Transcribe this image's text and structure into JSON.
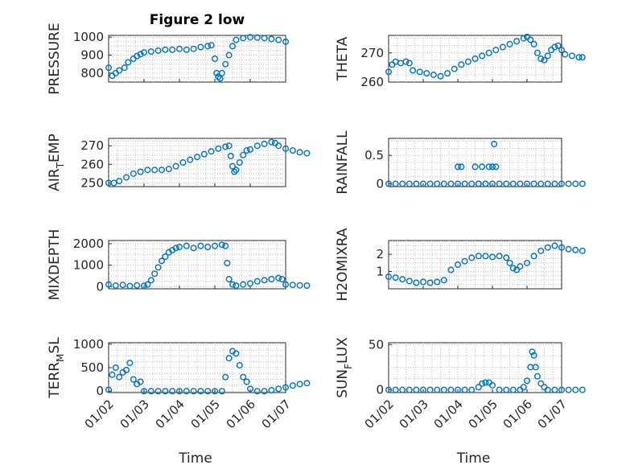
{
  "chart_data": [
    {
      "type": "scatter",
      "title": "Figure 2 low",
      "ylabel": "PRESSURE",
      "ylim": [
        750,
        1010
      ],
      "yticks": [
        800,
        900,
        1000
      ],
      "ytick_labels": [
        "800",
        "900",
        "1000"
      ],
      "xticks": [
        "01/02",
        "01/03",
        "01/04",
        "01/05",
        "01/06",
        "01/07"
      ],
      "xlabel": "",
      "series_color": "#0072BD",
      "grid": true,
      "points": [
        [
          0.0,
          830
        ],
        [
          0.1,
          785
        ],
        [
          0.2,
          800
        ],
        [
          0.3,
          815
        ],
        [
          0.45,
          830
        ],
        [
          0.55,
          860
        ],
        [
          0.7,
          880
        ],
        [
          0.8,
          895
        ],
        [
          0.9,
          905
        ],
        [
          1.0,
          915
        ],
        [
          1.2,
          920
        ],
        [
          1.4,
          925
        ],
        [
          1.6,
          930
        ],
        [
          1.8,
          930
        ],
        [
          2.0,
          935
        ],
        [
          2.2,
          930
        ],
        [
          2.4,
          935
        ],
        [
          2.6,
          945
        ],
        [
          2.8,
          950
        ],
        [
          2.9,
          955
        ],
        [
          3.0,
          880
        ],
        [
          3.05,
          800
        ],
        [
          3.1,
          780
        ],
        [
          3.15,
          770
        ],
        [
          3.2,
          800
        ],
        [
          3.3,
          850
        ],
        [
          3.4,
          900
        ],
        [
          3.5,
          950
        ],
        [
          3.6,
          985
        ],
        [
          3.8,
          995
        ],
        [
          4.0,
          1000
        ],
        [
          4.2,
          998
        ],
        [
          4.4,
          995
        ],
        [
          4.6,
          990
        ],
        [
          4.8,
          985
        ],
        [
          5.0,
          975
        ]
      ]
    },
    {
      "type": "scatter",
      "title": "",
      "ylabel": "THETA",
      "ylim": [
        260,
        276
      ],
      "yticks": [
        260,
        270
      ],
      "ytick_labels": [
        "260",
        "270"
      ],
      "xticks": [
        "01/02",
        "01/03",
        "01/04",
        "01/05",
        "01/06",
        "01/07"
      ],
      "xlabel": "",
      "series_color": "#0072BD",
      "grid": true,
      "points": [
        [
          0.0,
          263.5
        ],
        [
          0.1,
          266
        ],
        [
          0.2,
          267
        ],
        [
          0.35,
          266.5
        ],
        [
          0.5,
          267
        ],
        [
          0.6,
          266.5
        ],
        [
          0.7,
          264
        ],
        [
          0.9,
          263.5
        ],
        [
          1.1,
          263
        ],
        [
          1.3,
          262.5
        ],
        [
          1.5,
          262
        ],
        [
          1.7,
          263
        ],
        [
          1.9,
          264.5
        ],
        [
          2.1,
          266
        ],
        [
          2.3,
          267
        ],
        [
          2.5,
          268
        ],
        [
          2.7,
          269
        ],
        [
          2.9,
          270
        ],
        [
          3.1,
          271
        ],
        [
          3.3,
          272
        ],
        [
          3.5,
          273
        ],
        [
          3.7,
          274
        ],
        [
          3.9,
          275
        ],
        [
          4.0,
          275.5
        ],
        [
          4.1,
          274.5
        ],
        [
          4.2,
          273
        ],
        [
          4.3,
          270
        ],
        [
          4.4,
          268
        ],
        [
          4.5,
          267.5
        ],
        [
          4.6,
          269
        ],
        [
          4.7,
          271
        ],
        [
          4.8,
          272
        ],
        [
          4.9,
          272.5
        ],
        [
          5.0,
          271
        ],
        [
          5.1,
          269.5
        ],
        [
          5.3,
          269
        ],
        [
          5.5,
          268.5
        ],
        [
          5.6,
          268.5
        ]
      ]
    },
    {
      "type": "scatter",
      "title": "",
      "ylabel": "AIR_TEMP",
      "ylim": [
        248,
        274
      ],
      "yticks": [
        250,
        260,
        270
      ],
      "ytick_labels": [
        "250",
        "260",
        "270"
      ],
      "xticks": [
        "01/02",
        "01/03",
        "01/04",
        "01/05",
        "01/06",
        "01/07"
      ],
      "xlabel": "",
      "series_color": "#0072BD",
      "grid": true,
      "points": [
        [
          0.0,
          250
        ],
        [
          0.15,
          250
        ],
        [
          0.3,
          251
        ],
        [
          0.5,
          253
        ],
        [
          0.7,
          255
        ],
        [
          0.9,
          256
        ],
        [
          1.1,
          257
        ],
        [
          1.3,
          257
        ],
        [
          1.5,
          257
        ],
        [
          1.7,
          257.5
        ],
        [
          1.9,
          259
        ],
        [
          2.1,
          261
        ],
        [
          2.3,
          262.5
        ],
        [
          2.5,
          264
        ],
        [
          2.7,
          265.5
        ],
        [
          2.9,
          267
        ],
        [
          3.1,
          268.5
        ],
        [
          3.3,
          269.5
        ],
        [
          3.4,
          270
        ],
        [
          3.45,
          264.5
        ],
        [
          3.5,
          259
        ],
        [
          3.55,
          256
        ],
        [
          3.6,
          257
        ],
        [
          3.7,
          261
        ],
        [
          3.8,
          265
        ],
        [
          3.9,
          267.5
        ],
        [
          4.0,
          268
        ],
        [
          4.2,
          270
        ],
        [
          4.4,
          271
        ],
        [
          4.6,
          272
        ],
        [
          4.7,
          271.5
        ],
        [
          4.8,
          270
        ],
        [
          5.0,
          268.5
        ],
        [
          5.2,
          267.5
        ],
        [
          5.4,
          266.5
        ],
        [
          5.6,
          266
        ]
      ]
    },
    {
      "type": "scatter",
      "title": "",
      "ylabel": "RAINFALL",
      "ylim": [
        -0.05,
        0.8
      ],
      "yticks": [
        0,
        0.5
      ],
      "ytick_labels": [
        "0",
        "0.5"
      ],
      "xticks": [
        "01/02",
        "01/03",
        "01/04",
        "01/05",
        "01/06",
        "01/07"
      ],
      "xlabel": "",
      "series_color": "#0072BD",
      "grid": true,
      "points": [
        [
          0.0,
          0
        ],
        [
          0.2,
          0
        ],
        [
          0.4,
          0
        ],
        [
          0.6,
          0
        ],
        [
          0.8,
          0
        ],
        [
          1.0,
          0
        ],
        [
          1.2,
          0
        ],
        [
          1.4,
          0
        ],
        [
          1.6,
          0
        ],
        [
          1.8,
          0
        ],
        [
          2.0,
          0
        ],
        [
          2.2,
          0
        ],
        [
          2.4,
          0
        ],
        [
          2.6,
          0
        ],
        [
          2.8,
          0
        ],
        [
          3.0,
          0
        ],
        [
          3.2,
          0
        ],
        [
          3.4,
          0
        ],
        [
          3.6,
          0
        ],
        [
          3.8,
          0
        ],
        [
          4.0,
          0
        ],
        [
          4.2,
          0
        ],
        [
          4.4,
          0
        ],
        [
          4.6,
          0
        ],
        [
          4.8,
          0
        ],
        [
          5.0,
          0
        ],
        [
          5.2,
          0
        ],
        [
          5.4,
          0
        ],
        [
          5.6,
          0
        ],
        [
          2.0,
          0.3
        ],
        [
          2.1,
          0.3
        ],
        [
          2.5,
          0.3
        ],
        [
          2.7,
          0.3
        ],
        [
          2.9,
          0.3
        ],
        [
          3.0,
          0.3
        ],
        [
          3.1,
          0.3
        ],
        [
          3.05,
          0.7
        ],
        [
          2.6,
          0.0
        ],
        [
          2.8,
          0.0
        ]
      ]
    },
    {
      "type": "scatter",
      "title": "",
      "ylabel": "MIXDEPTH",
      "ylim": [
        -100,
        2150
      ],
      "yticks": [
        0,
        1000,
        2000
      ],
      "ytick_labels": [
        "0",
        "1000",
        "2000"
      ],
      "xticks": [
        "01/02",
        "01/03",
        "01/04",
        "01/05",
        "01/06",
        "01/07"
      ],
      "xlabel": "",
      "series_color": "#0072BD",
      "grid": true,
      "points": [
        [
          0.0,
          100
        ],
        [
          0.2,
          50
        ],
        [
          0.4,
          80
        ],
        [
          0.6,
          30
        ],
        [
          0.8,
          60
        ],
        [
          1.0,
          40
        ],
        [
          1.1,
          100
        ],
        [
          1.2,
          300
        ],
        [
          1.3,
          600
        ],
        [
          1.4,
          900
        ],
        [
          1.5,
          1200
        ],
        [
          1.6,
          1400
        ],
        [
          1.7,
          1600
        ],
        [
          1.8,
          1700
        ],
        [
          1.9,
          1800
        ],
        [
          2.0,
          1850
        ],
        [
          2.2,
          1900
        ],
        [
          2.4,
          1800
        ],
        [
          2.6,
          1900
        ],
        [
          2.8,
          1850
        ],
        [
          3.0,
          1900
        ],
        [
          3.2,
          1950
        ],
        [
          3.3,
          1900
        ],
        [
          3.35,
          1100
        ],
        [
          3.4,
          350
        ],
        [
          3.5,
          100
        ],
        [
          3.6,
          50
        ],
        [
          3.8,
          100
        ],
        [
          4.0,
          150
        ],
        [
          4.2,
          250
        ],
        [
          4.4,
          300
        ],
        [
          4.6,
          350
        ],
        [
          4.8,
          400
        ],
        [
          4.9,
          350
        ],
        [
          5.0,
          100
        ],
        [
          5.2,
          80
        ],
        [
          5.4,
          60
        ],
        [
          5.6,
          50
        ]
      ]
    },
    {
      "type": "scatter",
      "title": "",
      "ylabel": "H2OMIXRA",
      "ylim": [
        0,
        2.8
      ],
      "yticks": [
        1,
        2
      ],
      "ytick_labels": [
        "1",
        "2"
      ],
      "xticks": [
        "01/02",
        "01/03",
        "01/04",
        "01/05",
        "01/06",
        "01/07"
      ],
      "xlabel": "",
      "series_color": "#0072BD",
      "grid": true,
      "points": [
        [
          0.0,
          0.7
        ],
        [
          0.2,
          0.65
        ],
        [
          0.4,
          0.55
        ],
        [
          0.6,
          0.45
        ],
        [
          0.8,
          0.35
        ],
        [
          1.0,
          0.4
        ],
        [
          1.2,
          0.35
        ],
        [
          1.4,
          0.4
        ],
        [
          1.6,
          0.5
        ],
        [
          1.8,
          1.1
        ],
        [
          2.0,
          1.4
        ],
        [
          2.2,
          1.6
        ],
        [
          2.4,
          1.8
        ],
        [
          2.6,
          1.9
        ],
        [
          2.8,
          1.9
        ],
        [
          3.0,
          1.85
        ],
        [
          3.2,
          1.9
        ],
        [
          3.4,
          1.8
        ],
        [
          3.5,
          1.5
        ],
        [
          3.6,
          1.2
        ],
        [
          3.7,
          1.1
        ],
        [
          3.8,
          1.3
        ],
        [
          4.0,
          1.5
        ],
        [
          4.2,
          1.9
        ],
        [
          4.4,
          2.2
        ],
        [
          4.6,
          2.4
        ],
        [
          4.8,
          2.5
        ],
        [
          5.0,
          2.4
        ],
        [
          5.2,
          2.3
        ],
        [
          5.4,
          2.25
        ],
        [
          5.6,
          2.2
        ]
      ]
    },
    {
      "type": "scatter",
      "title": "",
      "ylabel": "TERR_MSL",
      "ylim": [
        -30,
        1030
      ],
      "yticks": [
        0,
        500,
        1000
      ],
      "ytick_labels": [
        "0",
        "500",
        "1000"
      ],
      "xticks": [
        "01/02",
        "01/03",
        "01/04",
        "01/05",
        "01/06",
        "01/07"
      ],
      "xlabel": "01/02 01/03 01/04 01/05 01/06 01/07",
      "series_color": "#0072BD",
      "grid": true,
      "points": [
        [
          0.0,
          30
        ],
        [
          0.1,
          350
        ],
        [
          0.2,
          500
        ],
        [
          0.3,
          300
        ],
        [
          0.4,
          400
        ],
        [
          0.5,
          450
        ],
        [
          0.6,
          600
        ],
        [
          0.7,
          250
        ],
        [
          0.8,
          150
        ],
        [
          0.9,
          200
        ],
        [
          1.0,
          0
        ],
        [
          1.2,
          0
        ],
        [
          1.4,
          0
        ],
        [
          1.6,
          0
        ],
        [
          1.8,
          0
        ],
        [
          2.0,
          0
        ],
        [
          2.2,
          0
        ],
        [
          2.4,
          0
        ],
        [
          2.6,
          0
        ],
        [
          2.8,
          0
        ],
        [
          3.0,
          0
        ],
        [
          3.2,
          0
        ],
        [
          3.3,
          300
        ],
        [
          3.4,
          700
        ],
        [
          3.5,
          850
        ],
        [
          3.6,
          800
        ],
        [
          3.7,
          550
        ],
        [
          3.8,
          300
        ],
        [
          3.9,
          200
        ],
        [
          4.0,
          50
        ],
        [
          4.2,
          0
        ],
        [
          4.4,
          0
        ],
        [
          4.6,
          20
        ],
        [
          4.8,
          50
        ],
        [
          5.0,
          80
        ],
        [
          5.2,
          120
        ],
        [
          5.4,
          150
        ],
        [
          5.6,
          170
        ]
      ]
    },
    {
      "type": "scatter",
      "title": "",
      "ylabel": "SUN_FLUX",
      "ylim": [
        -3,
        52
      ],
      "yticks": [
        0,
        50
      ],
      "ytick_labels": [
        "0",
        "50"
      ],
      "xticks": [
        "01/02",
        "01/03",
        "01/04",
        "01/05",
        "01/06",
        "01/07"
      ],
      "xlabel": "01/02 01/03 01/04 01/05 01/06 01/07",
      "series_color": "#0072BD",
      "grid": true,
      "points": [
        [
          0.0,
          0
        ],
        [
          0.2,
          0
        ],
        [
          0.4,
          0
        ],
        [
          0.6,
          0
        ],
        [
          0.8,
          0
        ],
        [
          1.0,
          0
        ],
        [
          1.2,
          0
        ],
        [
          1.4,
          0
        ],
        [
          1.6,
          0
        ],
        [
          1.8,
          0
        ],
        [
          2.0,
          0
        ],
        [
          2.2,
          0
        ],
        [
          2.4,
          0
        ],
        [
          2.6,
          3
        ],
        [
          2.7,
          7
        ],
        [
          2.8,
          8
        ],
        [
          2.9,
          8
        ],
        [
          3.0,
          5
        ],
        [
          3.2,
          0
        ],
        [
          3.4,
          0
        ],
        [
          3.6,
          0
        ],
        [
          3.8,
          0
        ],
        [
          3.9,
          3
        ],
        [
          4.0,
          10
        ],
        [
          4.1,
          25
        ],
        [
          4.15,
          42
        ],
        [
          4.2,
          38
        ],
        [
          4.25,
          25
        ],
        [
          4.3,
          15
        ],
        [
          4.4,
          7
        ],
        [
          4.5,
          3
        ],
        [
          4.6,
          0
        ],
        [
          4.8,
          0
        ],
        [
          5.0,
          0
        ],
        [
          5.2,
          0
        ],
        [
          5.4,
          0
        ],
        [
          5.6,
          0
        ]
      ]
    }
  ],
  "labels": {
    "title": "Figure 2 low",
    "ylabels": [
      {
        "main": "PRESSURE",
        "sub": ""
      },
      {
        "main": "THETA",
        "sub": ""
      },
      {
        "main": "AIR",
        "sub": "T",
        "rest": "EMP"
      },
      {
        "main": "RAINFALL",
        "sub": ""
      },
      {
        "main": "MIXDEPTH",
        "sub": ""
      },
      {
        "main": "H2OMIXRA",
        "sub": ""
      },
      {
        "main": "TERR",
        "sub": "M",
        "rest": "SL"
      },
      {
        "main": "SUN",
        "sub": "F",
        "rest": "LUX"
      }
    ],
    "xlabel": "Time",
    "xticks": [
      "01/02",
      "01/03",
      "01/04",
      "01/05",
      "01/06",
      "01/07"
    ]
  }
}
